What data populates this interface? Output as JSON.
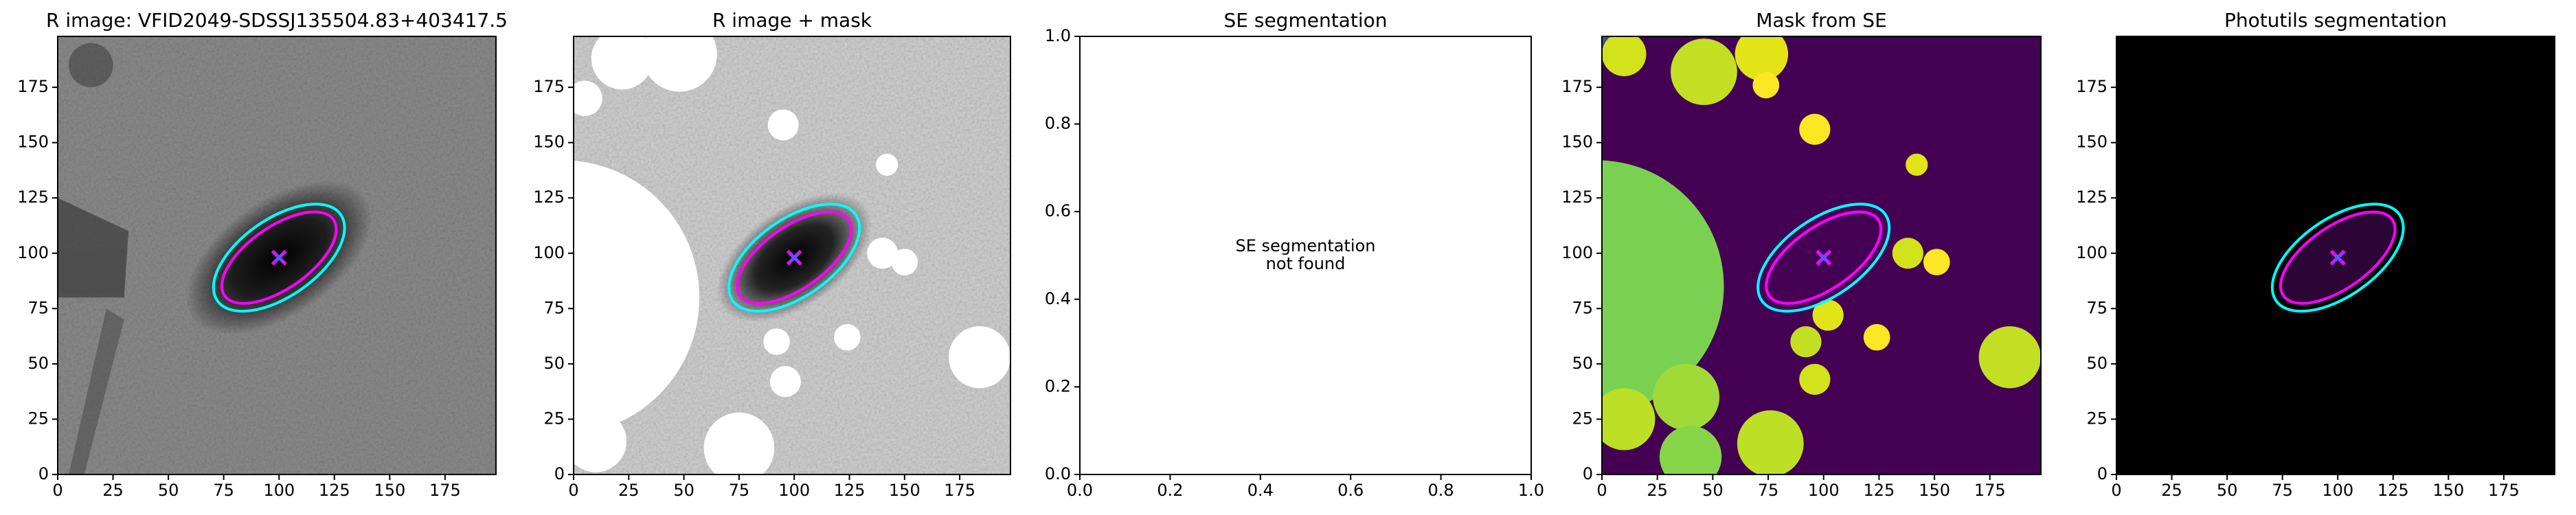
{
  "chart_data": [
    {
      "type": "image",
      "title": "R image: VFID2049-SDSSJ135504.83+403417.5",
      "xlim": [
        0,
        198
      ],
      "ylim": [
        0,
        198
      ],
      "xticks": [
        0,
        25,
        50,
        75,
        100,
        125,
        150,
        175
      ],
      "yticks": [
        0,
        25,
        50,
        75,
        100,
        125,
        150,
        175
      ]
    },
    {
      "type": "image",
      "title": "R image + mask",
      "xlim": [
        0,
        198
      ],
      "ylim": [
        0,
        198
      ],
      "xticks": [
        0,
        25,
        50,
        75,
        100,
        125,
        150,
        175
      ],
      "yticks": [
        0,
        25,
        50,
        75,
        100,
        125,
        150,
        175
      ]
    },
    {
      "type": "empty",
      "title": "SE segmentation",
      "xlim": [
        0,
        1
      ],
      "ylim": [
        0,
        1
      ],
      "xticks": [
        {
          "value": 0,
          "label": "0.0"
        },
        {
          "value": 0.2,
          "label": "0.2"
        },
        {
          "value": 0.4,
          "label": "0.4"
        },
        {
          "value": 0.6,
          "label": "0.6"
        },
        {
          "value": 0.8,
          "label": "0.8"
        },
        {
          "value": 1,
          "label": "1.0"
        }
      ],
      "yticks": [
        {
          "value": 0,
          "label": "0.0"
        },
        {
          "value": 0.2,
          "label": "0.2"
        },
        {
          "value": 0.4,
          "label": "0.4"
        },
        {
          "value": 0.6,
          "label": "0.6"
        },
        {
          "value": 0.8,
          "label": "0.8"
        },
        {
          "value": 1,
          "label": "1.0"
        }
      ],
      "annotation": [
        "SE segmentation",
        "not found"
      ]
    },
    {
      "type": "image",
      "title": "Mask from SE",
      "xlim": [
        0,
        198
      ],
      "ylim": [
        0,
        198
      ],
      "xticks": [
        0,
        25,
        50,
        75,
        100,
        125,
        150,
        175
      ],
      "yticks": [
        0,
        25,
        50,
        75,
        100,
        125,
        150,
        175
      ]
    },
    {
      "type": "image",
      "title": "Photutils segmentation",
      "xlim": [
        0,
        198
      ],
      "ylim": [
        0,
        198
      ],
      "xticks": [
        0,
        25,
        50,
        75,
        100,
        125,
        150,
        175
      ],
      "yticks": [
        0,
        25,
        50,
        75,
        100,
        125,
        150,
        175
      ]
    }
  ]
}
